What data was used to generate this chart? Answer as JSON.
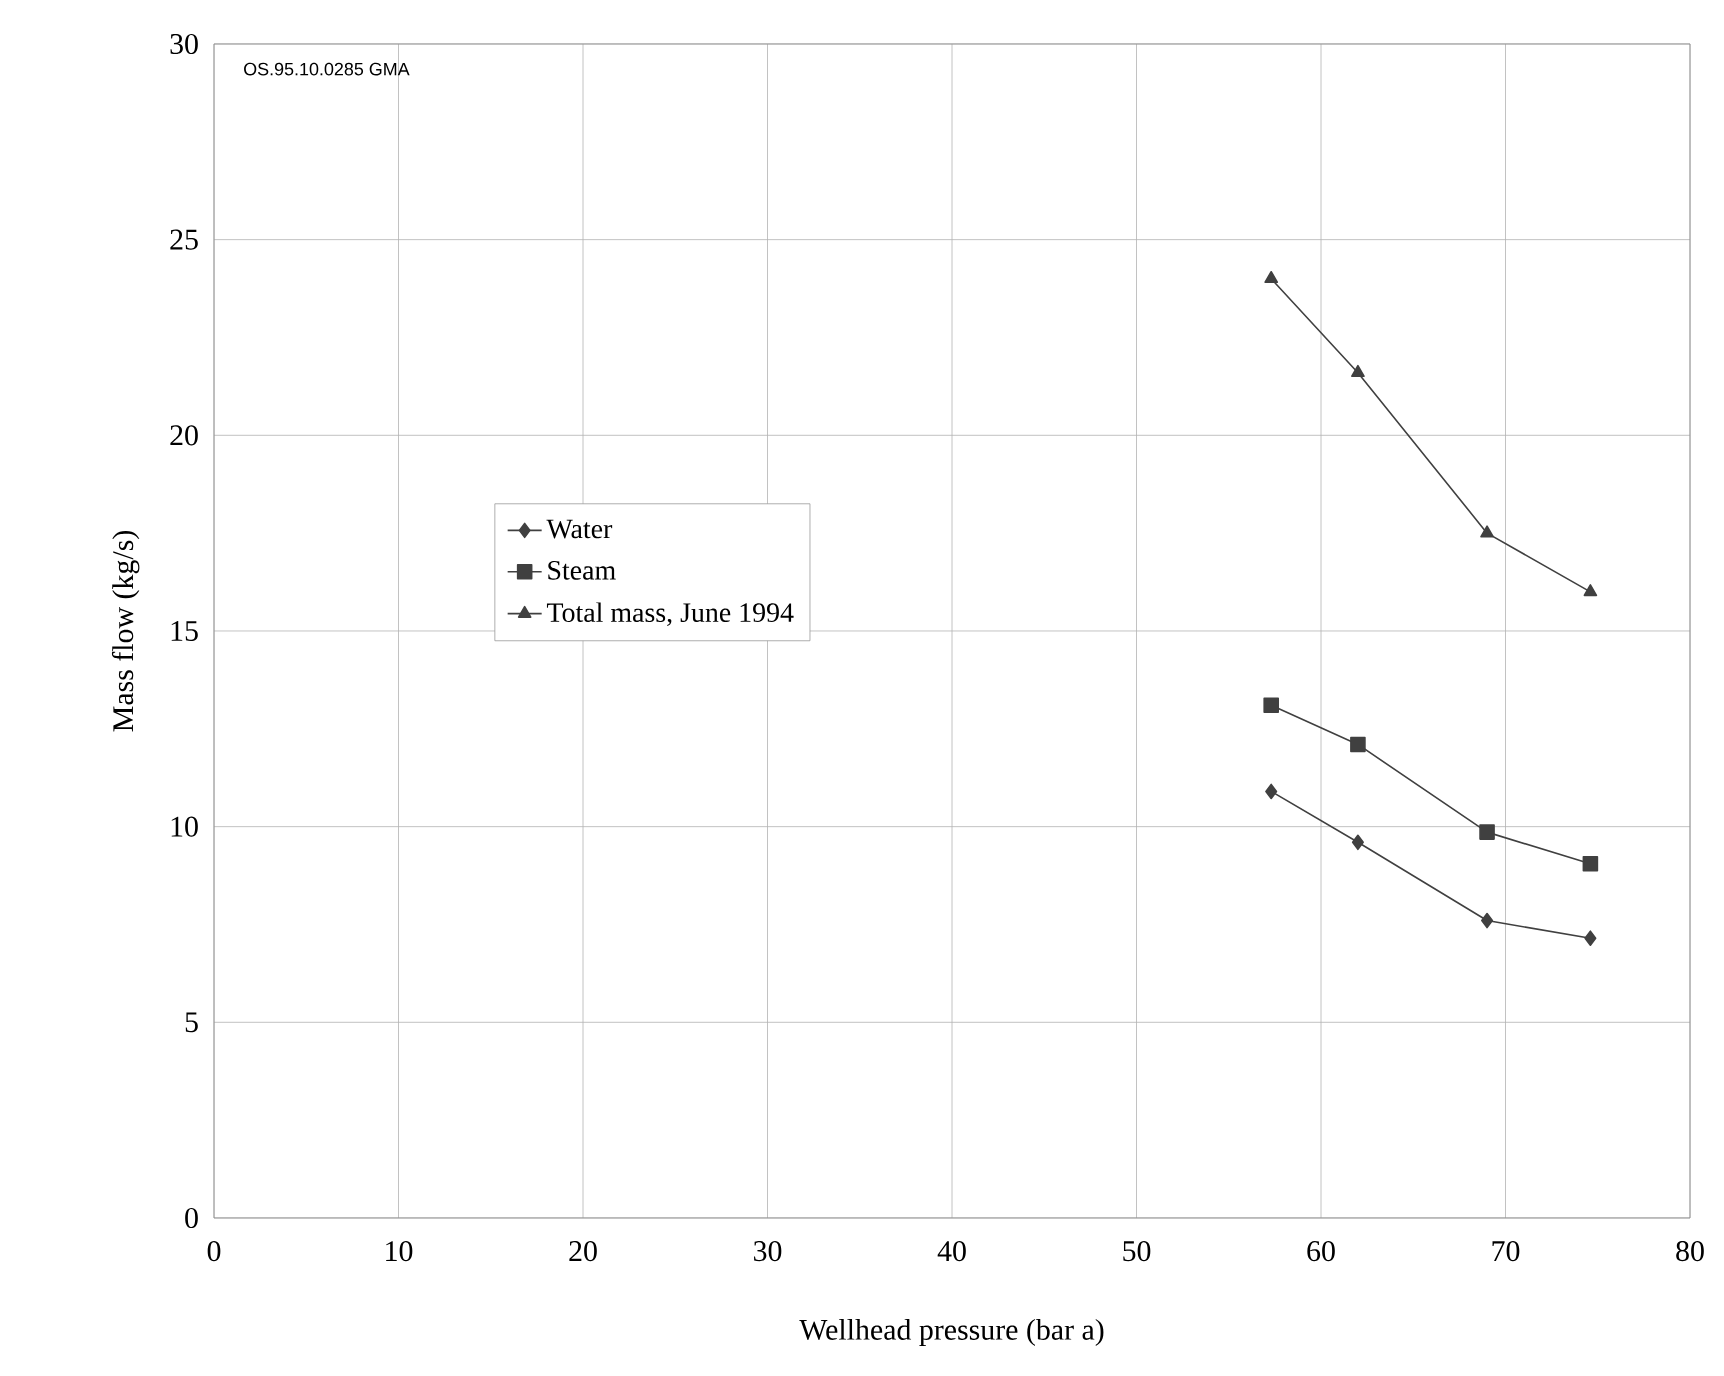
{
  "chart_data": {
    "type": "line",
    "xlabel": "Wellhead pressure (bar a)",
    "ylabel": "Mass flow (kg/s)",
    "annotations": [
      "OS.95.10.0285 GMA"
    ],
    "xlim": [
      0,
      80
    ],
    "xticks": [
      0,
      10,
      20,
      30,
      40,
      50,
      60,
      70,
      80
    ],
    "ylim": [
      0,
      30
    ],
    "yticks": [
      0,
      5,
      10,
      15,
      20,
      25,
      30
    ],
    "grid": true,
    "legend": "left",
    "line_style": "solid",
    "series": [
      {
        "name": "Water",
        "color": "#404040",
        "marker": "diamond",
        "x": [
          57.3,
          62,
          69,
          74.6
        ],
        "values": [
          10.9,
          9.6,
          7.6,
          7.15
        ]
      },
      {
        "name": "Steam",
        "color": "#404040",
        "marker": "square",
        "x": [
          57.3,
          62,
          69,
          74.6
        ],
        "values": [
          13.1,
          12.1,
          9.86,
          9.05
        ]
      },
      {
        "name": "Total mass, June 1994",
        "color": "#404040",
        "marker": "triangle",
        "x": [
          57.3,
          62,
          69,
          74.6
        ],
        "values": [
          24.0,
          21.6,
          17.5,
          16.0
        ]
      }
    ]
  }
}
